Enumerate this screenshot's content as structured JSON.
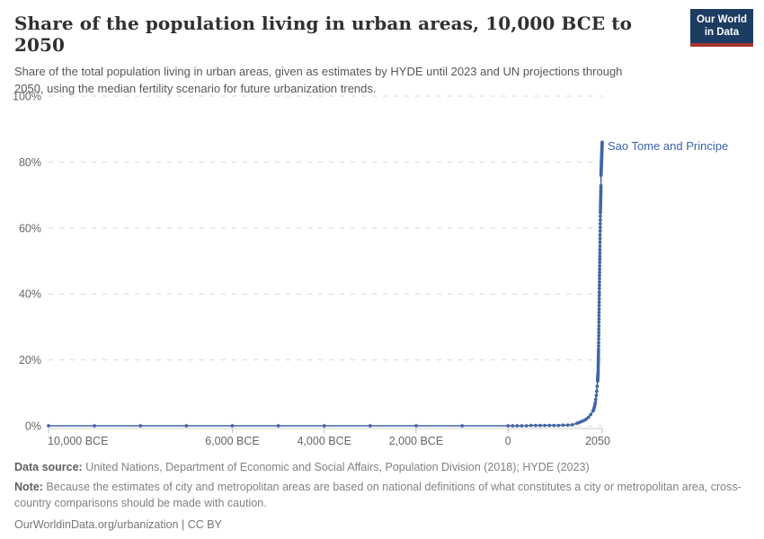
{
  "header": {
    "title": "Share of the population living in urban areas, 10,000 BCE to 2050",
    "subtitle": "Share of the total population living in urban areas, given as estimates by HYDE until 2023 and UN projections through 2050, using the median fertility scenario for future urbanization trends.",
    "logo": {
      "line1": "Our World",
      "line2": "in Data"
    }
  },
  "footer": {
    "data_source_label": "Data source:",
    "data_source_text": " United Nations, Department of Economic and Social Affairs, Population Division (2018); HYDE (2023)",
    "note_label": "Note:",
    "note_text": " Because the estimates of city and metropolitan areas are based on national definitions of what constitutes a city or metropolitan area, cross-country comparisons should be made with caution.",
    "link_text": "OurWorldinData.org/urbanization | CC BY"
  },
  "colors": {
    "line": "#4266a5",
    "entity_label": "#3c64a9",
    "grid": "#d8d8d8",
    "axis_text": "#666666",
    "axis_line": "#cccccc",
    "tick": "#bbbbbb",
    "logo_bg": "#1d3c61",
    "logo_red": "#a8352f"
  },
  "chart_data": {
    "type": "line",
    "entity_label": "Sao Tome and Principe",
    "xlim": [
      -10000,
      2050
    ],
    "ylim": [
      0,
      100
    ],
    "grid": true,
    "legend_position": "end-of-line-label",
    "x_ticks": [
      {
        "year": -10000,
        "label": "10,000 BCE"
      },
      {
        "year": -6000,
        "label": "6,000 BCE"
      },
      {
        "year": -4000,
        "label": "4,000 BCE"
      },
      {
        "year": -2000,
        "label": "2,000 BCE"
      },
      {
        "year": 0,
        "label": "0"
      },
      {
        "year": 2050,
        "label": "2050"
      }
    ],
    "y_ticks": [
      {
        "value": 0,
        "label": "0%"
      },
      {
        "value": 20,
        "label": "20%"
      },
      {
        "value": 40,
        "label": "40%"
      },
      {
        "value": 60,
        "label": "60%"
      },
      {
        "value": 80,
        "label": "80%"
      },
      {
        "value": 100,
        "label": "100%"
      }
    ],
    "series": [
      {
        "name": "Sao Tome and Principe",
        "points": [
          [
            -10000,
            0
          ],
          [
            -9000,
            0
          ],
          [
            -8000,
            0
          ],
          [
            -7000,
            0
          ],
          [
            -6000,
            0
          ],
          [
            -5000,
            0
          ],
          [
            -4000,
            0
          ],
          [
            -3000,
            0
          ],
          [
            -2000,
            0
          ],
          [
            -1000,
            0
          ],
          [
            0,
            0
          ],
          [
            100,
            0
          ],
          [
            200,
            0
          ],
          [
            300,
            0
          ],
          [
            400,
            0
          ],
          [
            500,
            0.1
          ],
          [
            600,
            0.1
          ],
          [
            700,
            0.1
          ],
          [
            800,
            0.1
          ],
          [
            900,
            0.1
          ],
          [
            1000,
            0.1
          ],
          [
            1100,
            0.1
          ],
          [
            1200,
            0.2
          ],
          [
            1300,
            0.2
          ],
          [
            1400,
            0.3
          ],
          [
            1500,
            0.8
          ],
          [
            1550,
            1.0
          ],
          [
            1600,
            1.3
          ],
          [
            1650,
            1.6
          ],
          [
            1700,
            2.0
          ],
          [
            1750,
            2.6
          ],
          [
            1800,
            3.4
          ],
          [
            1850,
            4.5
          ],
          [
            1860,
            4.8
          ],
          [
            1870,
            5.2
          ],
          [
            1880,
            5.7
          ],
          [
            1890,
            6.3
          ],
          [
            1900,
            7.0
          ],
          [
            1910,
            8.0
          ],
          [
            1920,
            9.2
          ],
          [
            1930,
            10.5
          ],
          [
            1940,
            12.0
          ],
          [
            1950,
            13.6
          ],
          [
            1951,
            13.9
          ],
          [
            1952,
            14.1
          ],
          [
            1953,
            14.4
          ],
          [
            1954,
            14.6
          ],
          [
            1955,
            14.9
          ],
          [
            1956,
            15.2
          ],
          [
            1957,
            15.4
          ],
          [
            1958,
            15.7
          ],
          [
            1959,
            15.9
          ],
          [
            1960,
            16.2
          ],
          [
            1961,
            16.9
          ],
          [
            1962,
            17.6
          ],
          [
            1963,
            18.3
          ],
          [
            1964,
            19.0
          ],
          [
            1965,
            19.7
          ],
          [
            1966,
            20.4
          ],
          [
            1967,
            21.1
          ],
          [
            1968,
            21.8
          ],
          [
            1969,
            22.5
          ],
          [
            1970,
            23.2
          ],
          [
            1971,
            24.2
          ],
          [
            1972,
            25.2
          ],
          [
            1973,
            26.3
          ],
          [
            1974,
            27.3
          ],
          [
            1975,
            28.3
          ],
          [
            1976,
            29.3
          ],
          [
            1977,
            30.3
          ],
          [
            1978,
            31.4
          ],
          [
            1979,
            32.4
          ],
          [
            1980,
            33.4
          ],
          [
            1981,
            34.4
          ],
          [
            1982,
            35.4
          ],
          [
            1983,
            36.5
          ],
          [
            1984,
            37.5
          ],
          [
            1985,
            38.5
          ],
          [
            1986,
            39.5
          ],
          [
            1987,
            40.5
          ],
          [
            1988,
            41.6
          ],
          [
            1989,
            42.6
          ],
          [
            1990,
            43.6
          ],
          [
            1991,
            44.6
          ],
          [
            1992,
            45.6
          ],
          [
            1993,
            46.5
          ],
          [
            1994,
            47.5
          ],
          [
            1995,
            48.5
          ],
          [
            1996,
            49.5
          ],
          [
            1997,
            50.5
          ],
          [
            1998,
            51.4
          ],
          [
            1999,
            52.4
          ],
          [
            2000,
            53.4
          ],
          [
            2001,
            54.5
          ],
          [
            2002,
            55.7
          ],
          [
            2003,
            56.8
          ],
          [
            2004,
            57.9
          ],
          [
            2005,
            59.1
          ],
          [
            2006,
            60.2
          ],
          [
            2007,
            61.3
          ],
          [
            2008,
            62.4
          ],
          [
            2009,
            63.6
          ],
          [
            2010,
            64.7
          ],
          [
            2011,
            65.3
          ],
          [
            2012,
            66.0
          ],
          [
            2013,
            66.6
          ],
          [
            2014,
            67.2
          ],
          [
            2015,
            67.8
          ],
          [
            2016,
            68.4
          ],
          [
            2017,
            69.0
          ],
          [
            2018,
            69.7
          ],
          [
            2019,
            70.3
          ],
          [
            2020,
            70.9
          ],
          [
            2021,
            71.5
          ],
          [
            2022,
            72.2
          ],
          [
            2023,
            72.8
          ],
          [
            2024,
            76.0
          ],
          [
            2025,
            76.4
          ],
          [
            2026,
            76.8
          ],
          [
            2027,
            77.2
          ],
          [
            2028,
            77.5
          ],
          [
            2029,
            77.9
          ],
          [
            2030,
            78.3
          ],
          [
            2031,
            78.7
          ],
          [
            2032,
            79.1
          ],
          [
            2033,
            79.5
          ],
          [
            2034,
            79.8
          ],
          [
            2035,
            80.2
          ],
          [
            2036,
            80.6
          ],
          [
            2037,
            81.0
          ],
          [
            2038,
            81.4
          ],
          [
            2039,
            81.7
          ],
          [
            2040,
            82.1
          ],
          [
            2041,
            82.5
          ],
          [
            2042,
            82.9
          ],
          [
            2043,
            83.3
          ],
          [
            2044,
            83.7
          ],
          [
            2045,
            84.0
          ],
          [
            2046,
            84.4
          ],
          [
            2047,
            84.8
          ],
          [
            2048,
            85.2
          ],
          [
            2049,
            85.6
          ],
          [
            2050,
            86.0
          ]
        ]
      }
    ]
  }
}
